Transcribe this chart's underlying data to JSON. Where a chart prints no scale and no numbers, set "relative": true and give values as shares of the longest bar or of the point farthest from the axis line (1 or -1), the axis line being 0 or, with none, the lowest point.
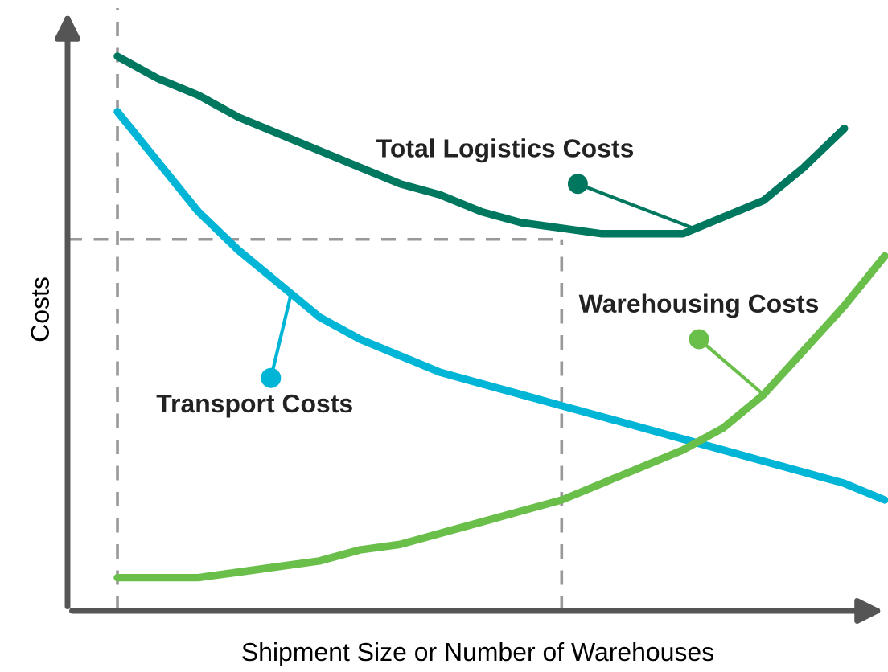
{
  "chart_data": {
    "type": "line",
    "relative": true,
    "xlabel": "Shipment Size or Number of Warehouses",
    "ylabel": "Costs",
    "marker": "none",
    "line_style": "solid",
    "categories": [
      null,
      null,
      null,
      null,
      null,
      null,
      null,
      null,
      null,
      null,
      null,
      null,
      null,
      null,
      null,
      null,
      null,
      null,
      null,
      null
    ],
    "series": [
      {
        "name": "Total Logistics Costs",
        "color": "#00775f",
        "values": [
          1.0,
          0.96,
          0.93,
          0.89,
          0.86,
          0.83,
          0.8,
          0.77,
          0.75,
          0.72,
          0.7,
          0.69,
          0.68,
          0.68,
          0.68,
          0.71,
          0.74,
          0.8,
          0.87,
          null
        ]
      },
      {
        "name": "Transport Costs",
        "color": "#00b5d6",
        "values": [
          0.9,
          0.81,
          0.72,
          0.65,
          0.59,
          0.53,
          0.49,
          0.46,
          0.43,
          0.41,
          0.39,
          0.37,
          0.35,
          0.33,
          0.31,
          0.29,
          0.27,
          0.25,
          0.23,
          0.2
        ]
      },
      {
        "name": "Warehousing Costs",
        "color": "#6abf4b",
        "values": [
          0.06,
          0.06,
          0.06,
          0.07,
          0.08,
          0.09,
          0.11,
          0.12,
          0.14,
          0.16,
          0.18,
          0.2,
          0.23,
          0.26,
          0.29,
          0.33,
          0.39,
          0.47,
          0.55,
          0.64
        ]
      }
    ],
    "ref_lines": [
      {
        "axis": "y",
        "value": 0.67,
        "color": "#999999",
        "line_style": "dashed"
      }
    ]
  }
}
